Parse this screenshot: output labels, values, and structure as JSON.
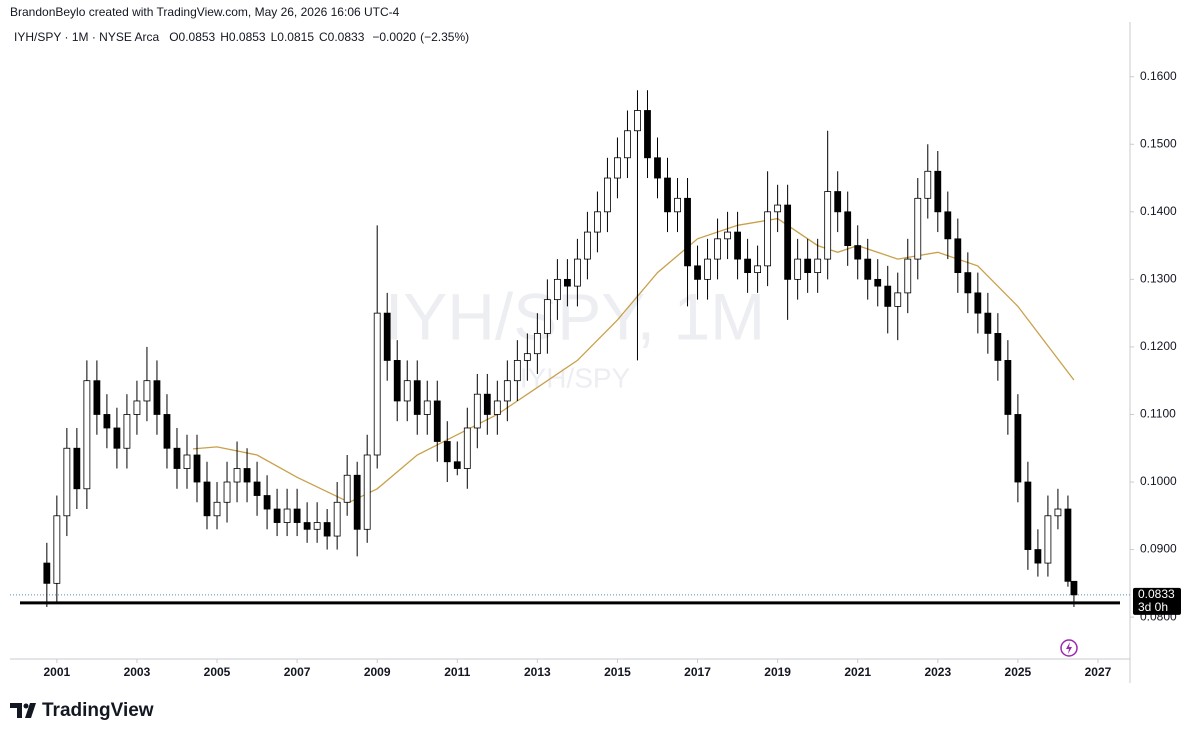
{
  "header": {
    "credit": "BrandonBeylo created with TradingView.com, May 26, 2026 16:06 UTC-4"
  },
  "footer": {
    "brand": "TradingView"
  },
  "chart_data": {
    "type": "candlestick",
    "symbol": "IYH/SPY",
    "interval": "1M",
    "exchange": "NYSE Arca",
    "watermark": "IYH/SPY, 1M",
    "watermark_sub": "IYH/SPY",
    "legend": {
      "open": 0.0853,
      "high": 0.0853,
      "low": 0.0815,
      "close": 0.0833,
      "change": {
        "value": -0.002,
        "label": "−0.0020"
      },
      "change_pct": {
        "value": -2.35,
        "label": "(−2.35%)"
      }
    },
    "last_price": 0.0833,
    "countdown": "3d 0h",
    "support_level": 0.0821,
    "up_color": "#ffffff",
    "down_color": "#000000",
    "outline_color": "#000000",
    "xlim": [
      1999.83,
      2027.8
    ],
    "ylim": [
      0.0738,
      0.1681
    ],
    "xticks": [
      2001,
      2003,
      2005,
      2007,
      2009,
      2011,
      2013,
      2015,
      2017,
      2019,
      2021,
      2023,
      2025,
      2027
    ],
    "yticks": [
      {
        "value": 0.08,
        "label": "0.0800"
      },
      {
        "value": 0.09,
        "label": "0.0900"
      },
      {
        "value": 0.1,
        "label": "0.1000"
      },
      {
        "value": 0.11,
        "label": "0.1100"
      },
      {
        "value": 0.12,
        "label": "0.1200"
      },
      {
        "value": 0.13,
        "label": "0.1300"
      },
      {
        "value": 0.14,
        "label": "0.1400"
      },
      {
        "value": 0.15,
        "label": "0.1500"
      },
      {
        "value": 0.16,
        "label": "0.1600"
      }
    ],
    "x": [
      2000.75,
      2001,
      2001.25,
      2001.5,
      2001.75,
      2002,
      2002.25,
      2002.5,
      2002.75,
      2003,
      2003.25,
      2003.5,
      2003.75,
      2004,
      2004.25,
      2004.5,
      2004.75,
      2005,
      2005.25,
      2005.5,
      2005.75,
      2006,
      2006.25,
      2006.5,
      2006.75,
      2007,
      2007.25,
      2007.5,
      2007.75,
      2008,
      2008.25,
      2008.5,
      2008.75,
      2009,
      2009.25,
      2009.5,
      2009.75,
      2010,
      2010.25,
      2010.5,
      2010.75,
      2011,
      2011.25,
      2011.5,
      2011.75,
      2012,
      2012.25,
      2012.5,
      2012.75,
      2013,
      2013.25,
      2013.5,
      2013.75,
      2014,
      2014.25,
      2014.5,
      2014.75,
      2015,
      2015.25,
      2015.5,
      2015.75,
      2016,
      2016.25,
      2016.5,
      2016.75,
      2017,
      2017.25,
      2017.5,
      2017.75,
      2018,
      2018.25,
      2018.5,
      2018.75,
      2019,
      2019.25,
      2019.5,
      2019.75,
      2020,
      2020.25,
      2020.5,
      2020.75,
      2021,
      2021.25,
      2021.5,
      2021.75,
      2022,
      2022.25,
      2022.5,
      2022.75,
      2023,
      2023.25,
      2023.5,
      2023.75,
      2024,
      2024.25,
      2024.5,
      2024.75,
      2025,
      2025.25,
      2025.5,
      2025.75,
      2026,
      2026.25,
      2026.4
    ],
    "open": [
      0.088,
      0.085,
      0.095,
      0.105,
      0.099,
      0.115,
      0.11,
      0.108,
      0.105,
      0.11,
      0.112,
      0.115,
      0.11,
      0.105,
      0.102,
      0.104,
      0.1,
      0.095,
      0.097,
      0.1,
      0.102,
      0.1,
      0.098,
      0.096,
      0.094,
      0.096,
      0.094,
      0.093,
      0.094,
      0.092,
      0.097,
      0.101,
      0.093,
      0.104,
      0.125,
      0.118,
      0.112,
      0.115,
      0.11,
      0.112,
      0.106,
      0.103,
      0.102,
      0.108,
      0.113,
      0.11,
      0.112,
      0.115,
      0.118,
      0.119,
      0.122,
      0.127,
      0.13,
      0.129,
      0.133,
      0.137,
      0.14,
      0.145,
      0.148,
      0.152,
      0.155,
      0.148,
      0.145,
      0.14,
      0.142,
      0.132,
      0.13,
      0.133,
      0.136,
      0.137,
      0.133,
      0.131,
      0.132,
      0.14,
      0.141,
      0.13,
      0.133,
      0.131,
      0.133,
      0.143,
      0.14,
      0.135,
      0.133,
      0.13,
      0.129,
      0.126,
      0.128,
      0.133,
      0.142,
      0.146,
      0.14,
      0.136,
      0.131,
      0.128,
      0.125,
      0.122,
      0.118,
      0.11,
      0.1,
      0.09,
      0.088,
      0.095,
      0.096,
      0.0853
    ],
    "high": [
      0.091,
      0.098,
      0.108,
      0.108,
      0.118,
      0.118,
      0.113,
      0.111,
      0.113,
      0.115,
      0.12,
      0.118,
      0.113,
      0.108,
      0.107,
      0.107,
      0.103,
      0.1,
      0.103,
      0.106,
      0.105,
      0.103,
      0.101,
      0.099,
      0.099,
      0.099,
      0.097,
      0.097,
      0.096,
      0.1,
      0.104,
      0.103,
      0.107,
      0.138,
      0.128,
      0.121,
      0.118,
      0.118,
      0.115,
      0.115,
      0.109,
      0.106,
      0.111,
      0.116,
      0.116,
      0.115,
      0.118,
      0.121,
      0.122,
      0.125,
      0.13,
      0.133,
      0.133,
      0.136,
      0.14,
      0.143,
      0.148,
      0.151,
      0.155,
      0.158,
      0.158,
      0.151,
      0.148,
      0.145,
      0.145,
      0.135,
      0.136,
      0.139,
      0.14,
      0.14,
      0.136,
      0.135,
      0.146,
      0.144,
      0.144,
      0.136,
      0.136,
      0.136,
      0.152,
      0.146,
      0.143,
      0.138,
      0.136,
      0.133,
      0.132,
      0.131,
      0.136,
      0.145,
      0.15,
      0.149,
      0.143,
      0.139,
      0.134,
      0.131,
      0.128,
      0.125,
      0.121,
      0.113,
      0.103,
      0.093,
      0.098,
      0.099,
      0.098,
      0.0853
    ],
    "low": [
      0.0815,
      0.082,
      0.092,
      0.096,
      0.096,
      0.107,
      0.105,
      0.102,
      0.102,
      0.107,
      0.109,
      0.107,
      0.102,
      0.099,
      0.099,
      0.097,
      0.093,
      0.093,
      0.094,
      0.097,
      0.097,
      0.095,
      0.093,
      0.092,
      0.092,
      0.092,
      0.091,
      0.091,
      0.09,
      0.09,
      0.095,
      0.089,
      0.091,
      0.102,
      0.115,
      0.109,
      0.109,
      0.107,
      0.107,
      0.103,
      0.1,
      0.101,
      0.099,
      0.105,
      0.107,
      0.107,
      0.109,
      0.112,
      0.115,
      0.116,
      0.119,
      0.124,
      0.126,
      0.126,
      0.13,
      0.134,
      0.137,
      0.142,
      0.145,
      0.118,
      0.145,
      0.142,
      0.137,
      0.137,
      0.126,
      0.127,
      0.127,
      0.13,
      0.133,
      0.13,
      0.128,
      0.128,
      0.129,
      0.137,
      0.124,
      0.127,
      0.128,
      0.128,
      0.13,
      0.137,
      0.132,
      0.13,
      0.127,
      0.126,
      0.122,
      0.121,
      0.125,
      0.13,
      0.139,
      0.137,
      0.133,
      0.128,
      0.125,
      0.122,
      0.119,
      0.115,
      0.107,
      0.097,
      0.087,
      0.086,
      0.086,
      0.093,
      0.0845,
      0.0815
    ],
    "close": [
      0.085,
      0.095,
      0.105,
      0.099,
      0.115,
      0.11,
      0.108,
      0.105,
      0.11,
      0.112,
      0.115,
      0.11,
      0.105,
      0.102,
      0.104,
      0.1,
      0.095,
      0.097,
      0.1,
      0.102,
      0.1,
      0.098,
      0.096,
      0.094,
      0.096,
      0.094,
      0.093,
      0.094,
      0.092,
      0.097,
      0.101,
      0.093,
      0.104,
      0.125,
      0.118,
      0.112,
      0.115,
      0.11,
      0.112,
      0.106,
      0.103,
      0.102,
      0.108,
      0.113,
      0.11,
      0.112,
      0.115,
      0.118,
      0.119,
      0.122,
      0.127,
      0.13,
      0.129,
      0.133,
      0.137,
      0.14,
      0.145,
      0.148,
      0.152,
      0.155,
      0.148,
      0.145,
      0.14,
      0.142,
      0.132,
      0.13,
      0.133,
      0.136,
      0.137,
      0.133,
      0.131,
      0.132,
      0.14,
      0.141,
      0.13,
      0.133,
      0.131,
      0.133,
      0.143,
      0.14,
      0.135,
      0.133,
      0.13,
      0.129,
      0.126,
      0.128,
      0.133,
      0.142,
      0.146,
      0.14,
      0.136,
      0.131,
      0.128,
      0.125,
      0.122,
      0.118,
      0.11,
      0.1,
      0.09,
      0.088,
      0.095,
      0.096,
      0.0853,
      0.0833
    ],
    "moving_average": {
      "color": "#c9a04a",
      "x": [
        2004.4,
        2005,
        2006,
        2007,
        2008.3,
        2009,
        2010,
        2011,
        2012,
        2013,
        2014,
        2015,
        2016,
        2017,
        2018,
        2019,
        2020,
        2020.5,
        2021,
        2022,
        2023,
        2024,
        2025,
        2026.4
      ],
      "values": [
        0.1049,
        0.1052,
        0.104,
        0.1007,
        0.097,
        0.099,
        0.104,
        0.107,
        0.11,
        0.114,
        0.118,
        0.124,
        0.131,
        0.136,
        0.138,
        0.139,
        0.135,
        0.134,
        0.135,
        0.133,
        0.134,
        0.132,
        0.126,
        0.1151
      ]
    }
  }
}
